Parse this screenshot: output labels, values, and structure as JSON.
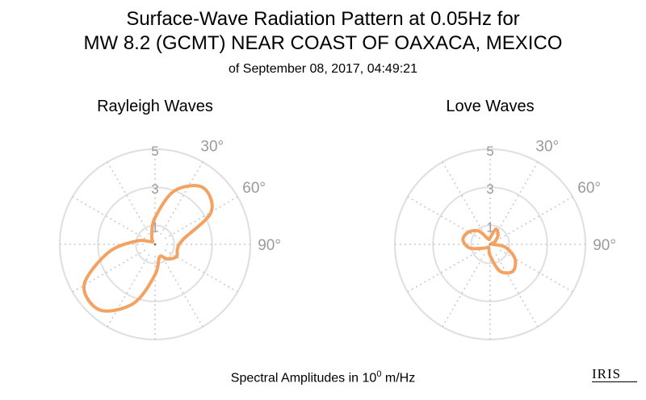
{
  "header": {
    "title_line1": "Surface-Wave Radiation Pattern at 0.05Hz for",
    "title_line2": "MW 8.2 (GCMT) NEAR COAST OF OAXACA, MEXICO",
    "subtitle": "of September 08, 2017, 04:49:21"
  },
  "footer": {
    "label_prefix": "Spectral Amplitudes in 10",
    "label_exp": "0",
    "label_suffix": " m/Hz"
  },
  "logo_text": "IRIS",
  "colors": {
    "pattern": "#f4a261",
    "grid": "#e0e0e0",
    "tick_text": "#9a9a9a"
  },
  "chart_data": [
    {
      "type": "polar",
      "title": "Rayleigh Waves",
      "radial_ticks": [
        "1",
        "3",
        "5"
      ],
      "radial_tick_values": [
        1,
        3,
        5
      ],
      "rmax": 5,
      "angle_ticks": [
        "30°",
        "60°",
        "90°"
      ],
      "angle_tick_values": [
        30,
        60,
        90
      ],
      "zero_direction": "north",
      "direction": "clockwise",
      "radial_grid": "solid",
      "angular_grid": "dotted",
      "azimuth_deg": [
        0,
        20,
        40,
        60,
        80,
        100,
        120,
        140,
        160,
        180,
        200,
        220,
        240,
        260,
        280,
        300,
        320,
        340
      ],
      "amplitude": [
        1.4,
        3.0,
        3.9,
        3.4,
        1.5,
        1.2,
        1.3,
        1.0,
        0.7,
        1.6,
        3.3,
        4.5,
        4.3,
        2.5,
        1.0,
        0.3,
        0.2,
        0.5
      ]
    },
    {
      "type": "polar",
      "title": "Love Waves",
      "radial_ticks": [
        "1",
        "3",
        "5"
      ],
      "radial_tick_values": [
        1,
        3,
        5
      ],
      "rmax": 5,
      "angle_ticks": [
        "30°",
        "60°",
        "90°"
      ],
      "angle_tick_values": [
        30,
        60,
        90
      ],
      "zero_direction": "north",
      "direction": "clockwise",
      "radial_grid": "solid",
      "angular_grid": "dotted",
      "azimuth_deg": [
        0,
        20,
        40,
        60,
        80,
        100,
        120,
        140,
        160,
        180,
        200,
        220,
        240,
        260,
        280,
        300,
        320,
        340
      ],
      "amplitude": [
        0.35,
        0.85,
        0.65,
        0.3,
        0.1,
        0.8,
        1.5,
        1.85,
        1.5,
        0.6,
        0.2,
        0.2,
        0.4,
        1.1,
        1.45,
        1.3,
        0.9,
        0.3
      ]
    }
  ]
}
